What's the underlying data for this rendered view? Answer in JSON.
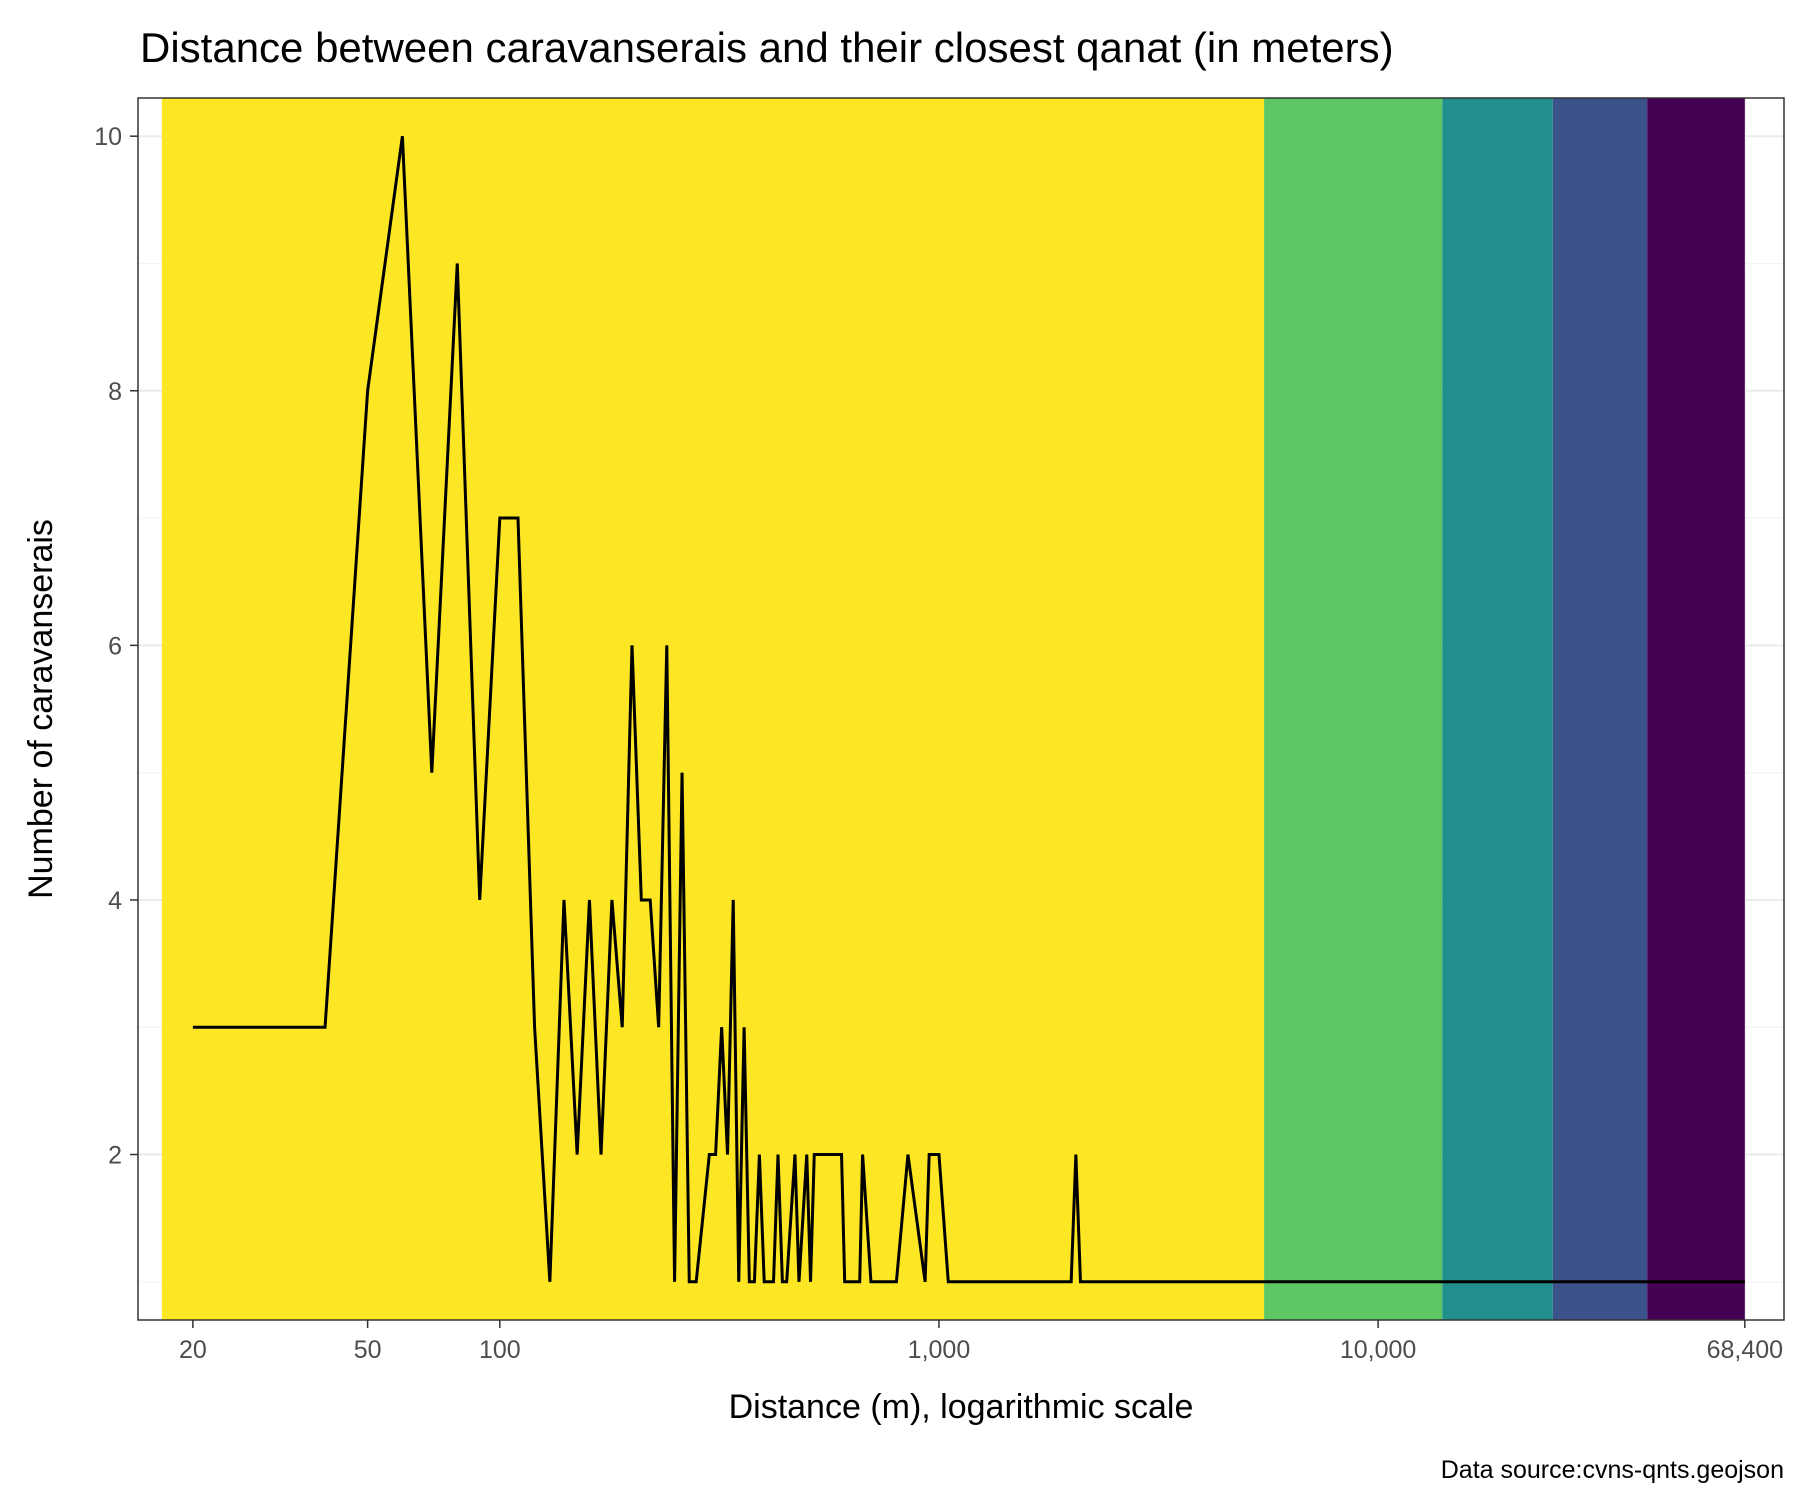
{
  "chart_data": {
    "type": "line",
    "title": "Distance between caravanserais and their closest qanat (in meters)",
    "xlabel": "Distance (m), logarithmic scale",
    "ylabel": "Number of caravanserais",
    "caption": "Data source:cvns-qnts.geojson",
    "x_scale": "log10",
    "xlim": [
      15,
      84000
    ],
    "ylim": [
      0.7,
      10.3
    ],
    "x_ticks": [
      20,
      50,
      100,
      1000,
      10000,
      68400
    ],
    "x_tick_labels": [
      "20",
      "50",
      "100",
      "1,000",
      "10,000",
      "68,400"
    ],
    "y_ticks": [
      2,
      4,
      6,
      8,
      10
    ],
    "y_tick_labels": [
      "2",
      "4",
      "6",
      "8",
      "10"
    ],
    "grid": true,
    "line_color": "#000000",
    "bands": [
      {
        "from": 17,
        "to": 5500,
        "color": "#FDE725"
      },
      {
        "from": 5500,
        "to": 14000,
        "color": "#5DC863"
      },
      {
        "from": 14000,
        "to": 25000,
        "color": "#21908C"
      },
      {
        "from": 25000,
        "to": 41000,
        "color": "#3B528B"
      },
      {
        "from": 41000,
        "to": 68400,
        "color": "#440154"
      }
    ],
    "series": [
      {
        "x": [
          20,
          40,
          50,
          60,
          70,
          80,
          90,
          100,
          110,
          120,
          130,
          140,
          150,
          160,
          170,
          180,
          190,
          200,
          210,
          220,
          230,
          240,
          250,
          260,
          270,
          280,
          300,
          310,
          320,
          330,
          340,
          350,
          360,
          370,
          380,
          390,
          400,
          420,
          430,
          440,
          450,
          470,
          480,
          500,
          510,
          520,
          530,
          540,
          550,
          600,
          610,
          620,
          660,
          670,
          700,
          800,
          850,
          930,
          950,
          1000,
          1050,
          2000,
          2050,
          2100,
          68400
        ],
        "y": [
          3,
          3,
          8,
          10,
          5,
          9,
          4,
          7,
          7,
          3,
          1,
          4,
          2,
          4,
          2,
          4,
          3,
          6,
          4,
          4,
          3,
          6,
          1,
          5,
          1,
          1,
          2,
          2,
          3,
          2,
          4,
          1,
          3,
          1,
          1,
          2,
          1,
          1,
          2,
          1,
          1,
          2,
          1,
          2,
          1,
          2,
          2,
          2,
          2,
          2,
          1,
          1,
          1,
          2,
          1,
          1,
          2,
          1,
          2,
          2,
          1,
          1,
          2,
          1,
          1
        ]
      }
    ]
  }
}
